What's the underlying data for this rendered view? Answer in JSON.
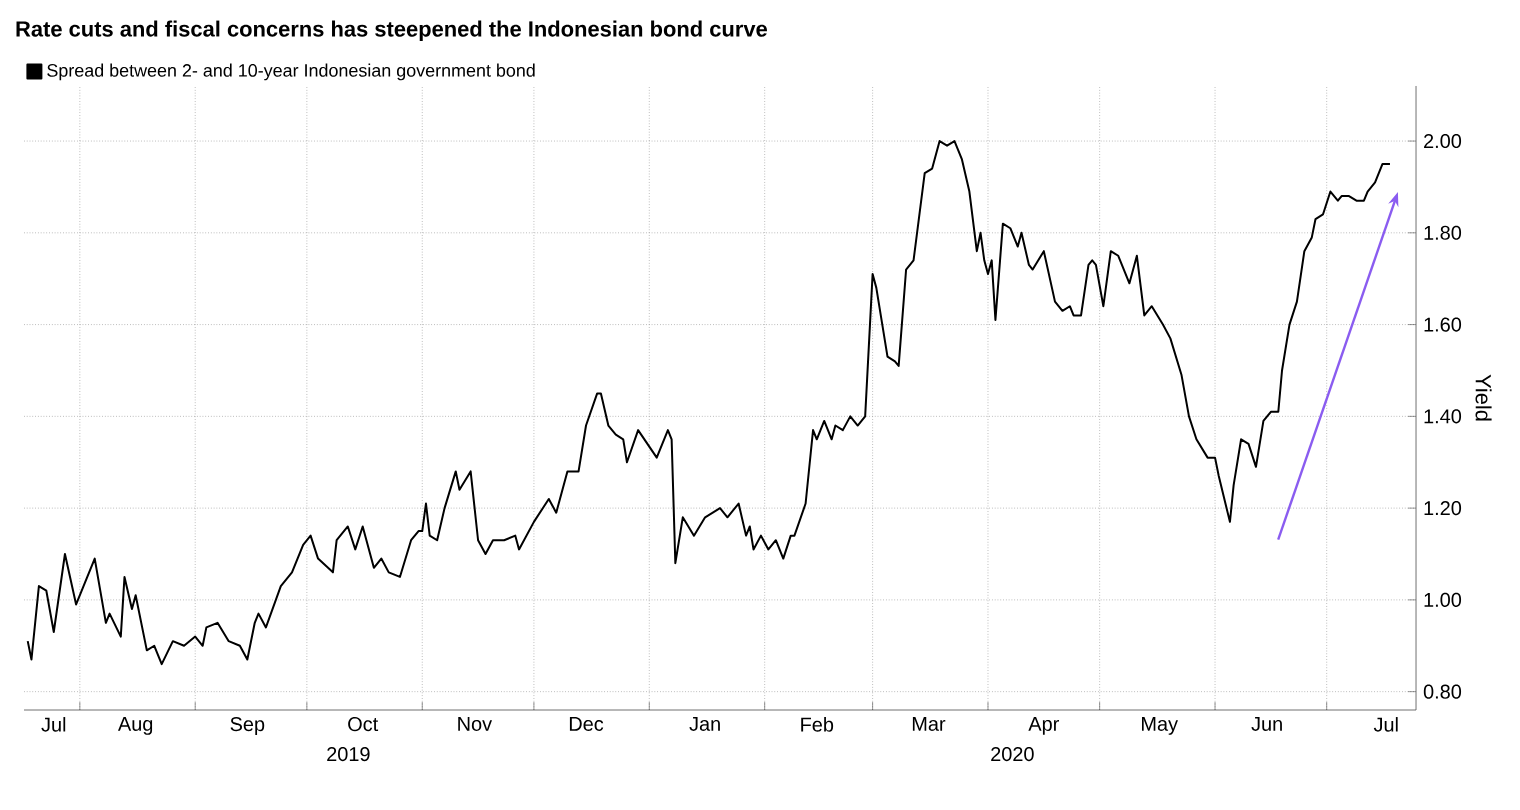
{
  "chart_data": {
    "type": "line",
    "title": "Rate cuts and fiscal concerns has steepened the Indonesian bond curve",
    "ylabel": "Yield",
    "legend": "top left",
    "grid": true,
    "annotations": [
      "2019",
      "2020"
    ],
    "xlim": [
      "2019-07-17",
      "2020-07-25"
    ],
    "xticks": [
      {
        "value": "2019-07-25",
        "label": "Jul"
      },
      {
        "value": "2019-08-01",
        "label": null
      },
      {
        "value": "2019-08-16",
        "label": "Aug"
      },
      {
        "value": "2019-09-01",
        "label": null
      },
      {
        "value": "2019-09-15",
        "label": "Sep"
      },
      {
        "value": "2019-10-01",
        "label": null
      },
      {
        "value": "2019-10-16",
        "label": "Oct"
      },
      {
        "value": "2019-11-01",
        "label": null
      },
      {
        "value": "2019-11-15",
        "label": "Nov"
      },
      {
        "value": "2019-12-01",
        "label": null
      },
      {
        "value": "2019-12-15",
        "label": "Dec"
      },
      {
        "value": "2020-01-01",
        "label": null
      },
      {
        "value": "2020-01-16",
        "label": "Jan"
      },
      {
        "value": "2020-02-01",
        "label": null
      },
      {
        "value": "2020-02-15",
        "label": "Feb"
      },
      {
        "value": "2020-03-01",
        "label": null
      },
      {
        "value": "2020-03-16",
        "label": "Mar"
      },
      {
        "value": "2020-04-01",
        "label": null
      },
      {
        "value": "2020-04-16",
        "label": "Apr"
      },
      {
        "value": "2020-05-01",
        "label": null
      },
      {
        "value": "2020-05-17",
        "label": "May"
      },
      {
        "value": "2020-06-01",
        "label": null
      },
      {
        "value": "2020-06-15",
        "label": "Jun"
      },
      {
        "value": "2020-07-01",
        "label": null
      },
      {
        "value": "2020-07-17",
        "label": "Jul"
      }
    ],
    "ylim": [
      0.76,
      2.12
    ],
    "yticks": [
      {
        "value": 0.8,
        "label": "0.80"
      },
      {
        "value": 1.0,
        "label": "1.00"
      },
      {
        "value": 1.2,
        "label": "1.20"
      },
      {
        "value": 1.4,
        "label": "1.40"
      },
      {
        "value": 1.6,
        "label": "1.60"
      },
      {
        "value": 1.8,
        "label": "1.80"
      },
      {
        "value": 2.0,
        "label": "2.00"
      }
    ],
    "series": [
      {
        "name": "Spread between 2- and 10-year Indonesian government bond",
        "color": "#000000",
        "x": [
          "2019-07-18",
          "2019-07-19",
          "2019-07-21",
          "2019-07-23",
          "2019-07-25",
          "2019-07-28",
          "2019-07-31",
          "2019-08-05",
          "2019-08-08",
          "2019-08-09",
          "2019-08-12",
          "2019-08-13",
          "2019-08-15",
          "2019-08-16",
          "2019-08-19",
          "2019-08-21",
          "2019-08-23",
          "2019-08-26",
          "2019-08-29",
          "2019-09-01",
          "2019-09-03",
          "2019-09-04",
          "2019-09-07",
          "2019-09-10",
          "2019-09-13",
          "2019-09-15",
          "2019-09-17",
          "2019-09-18",
          "2019-09-20",
          "2019-09-24",
          "2019-09-27",
          "2019-09-30",
          "2019-10-02",
          "2019-10-04",
          "2019-10-08",
          "2019-10-09",
          "2019-10-12",
          "2019-10-14",
          "2019-10-16",
          "2019-10-19",
          "2019-10-21",
          "2019-10-23",
          "2019-10-26",
          "2019-10-29",
          "2019-10-31",
          "2019-11-01",
          "2019-11-02",
          "2019-11-03",
          "2019-11-05",
          "2019-11-07",
          "2019-11-10",
          "2019-11-11",
          "2019-11-14",
          "2019-11-16",
          "2019-11-18",
          "2019-11-20",
          "2019-11-23",
          "2019-11-26",
          "2019-11-27",
          "2019-12-01",
          "2019-12-05",
          "2019-12-07",
          "2019-12-10",
          "2019-12-13",
          "2019-12-15",
          "2019-12-18",
          "2019-12-19",
          "2019-12-21",
          "2019-12-23",
          "2019-12-25",
          "2019-12-26",
          "2019-12-29",
          "2020-01-03",
          "2020-01-06",
          "2020-01-07",
          "2020-01-08",
          "2020-01-10",
          "2020-01-13",
          "2020-01-16",
          "2020-01-20",
          "2020-01-22",
          "2020-01-25",
          "2020-01-27",
          "2020-01-28",
          "2020-01-29",
          "2020-01-31",
          "2020-02-02",
          "2020-02-04",
          "2020-02-06",
          "2020-02-08",
          "2020-02-09",
          "2020-02-12",
          "2020-02-14",
          "2020-02-15",
          "2020-02-17",
          "2020-02-19",
          "2020-02-20",
          "2020-02-22",
          "2020-02-24",
          "2020-02-26",
          "2020-02-28",
          "2020-03-01",
          "2020-03-02",
          "2020-03-05",
          "2020-03-07",
          "2020-03-08",
          "2020-03-10",
          "2020-03-12",
          "2020-03-15",
          "2020-03-17",
          "2020-03-19",
          "2020-03-21",
          "2020-03-23",
          "2020-03-25",
          "2020-03-27",
          "2020-03-29",
          "2020-03-30",
          "2020-03-31",
          "2020-04-01",
          "2020-04-02",
          "2020-04-03",
          "2020-04-05",
          "2020-04-07",
          "2020-04-09",
          "2020-04-10",
          "2020-04-12",
          "2020-04-13",
          "2020-04-16",
          "2020-04-19",
          "2020-04-21",
          "2020-04-23",
          "2020-04-24",
          "2020-04-26",
          "2020-04-28",
          "2020-04-29",
          "2020-04-30",
          "2020-05-02",
          "2020-05-04",
          "2020-05-06",
          "2020-05-09",
          "2020-05-11",
          "2020-05-13",
          "2020-05-15",
          "2020-05-18",
          "2020-05-20",
          "2020-05-23",
          "2020-05-25",
          "2020-05-27",
          "2020-05-30",
          "2020-06-01",
          "2020-06-02",
          "2020-06-05",
          "2020-06-06",
          "2020-06-08",
          "2020-06-10",
          "2020-06-12",
          "2020-06-14",
          "2020-06-16",
          "2020-06-18",
          "2020-06-19",
          "2020-06-21",
          "2020-06-23",
          "2020-06-25",
          "2020-06-27",
          "2020-06-28",
          "2020-06-30",
          "2020-07-02",
          "2020-07-04",
          "2020-07-05",
          "2020-07-07",
          "2020-07-09",
          "2020-07-11",
          "2020-07-12",
          "2020-07-14",
          "2020-07-16",
          "2020-07-18"
        ],
        "values": [
          0.91,
          0.87,
          1.03,
          1.02,
          0.93,
          1.1,
          0.99,
          1.09,
          0.95,
          0.97,
          0.92,
          1.05,
          0.98,
          1.01,
          0.89,
          0.9,
          0.86,
          0.91,
          0.9,
          0.92,
          0.9,
          0.94,
          0.95,
          0.91,
          0.9,
          0.87,
          0.95,
          0.97,
          0.94,
          1.03,
          1.06,
          1.12,
          1.14,
          1.09,
          1.06,
          1.13,
          1.16,
          1.11,
          1.16,
          1.07,
          1.09,
          1.06,
          1.05,
          1.13,
          1.15,
          1.15,
          1.21,
          1.14,
          1.13,
          1.2,
          1.28,
          1.24,
          1.28,
          1.13,
          1.1,
          1.13,
          1.13,
          1.14,
          1.11,
          1.17,
          1.22,
          1.19,
          1.28,
          1.28,
          1.38,
          1.45,
          1.45,
          1.38,
          1.36,
          1.35,
          1.3,
          1.37,
          1.31,
          1.37,
          1.35,
          1.08,
          1.18,
          1.14,
          1.18,
          1.2,
          1.18,
          1.21,
          1.14,
          1.16,
          1.11,
          1.14,
          1.11,
          1.13,
          1.09,
          1.14,
          1.14,
          1.21,
          1.37,
          1.35,
          1.39,
          1.35,
          1.38,
          1.37,
          1.4,
          1.38,
          1.4,
          1.71,
          1.68,
          1.53,
          1.52,
          1.51,
          1.72,
          1.74,
          1.93,
          1.94,
          2.0,
          1.99,
          2.0,
          1.96,
          1.89,
          1.76,
          1.8,
          1.74,
          1.71,
          1.74,
          1.61,
          1.82,
          1.81,
          1.77,
          1.8,
          1.73,
          1.72,
          1.76,
          1.65,
          1.63,
          1.64,
          1.62,
          1.62,
          1.73,
          1.74,
          1.73,
          1.64,
          1.76,
          1.75,
          1.69,
          1.75,
          1.62,
          1.64,
          1.6,
          1.57,
          1.49,
          1.4,
          1.35,
          1.31,
          1.31,
          1.27,
          1.17,
          1.25,
          1.35,
          1.34,
          1.29,
          1.39,
          1.41,
          1.41,
          1.5,
          1.6,
          1.65,
          1.76,
          1.79,
          1.83,
          1.84,
          1.89,
          1.87,
          1.88,
          1.88,
          1.87,
          1.87,
          1.89,
          1.91,
          1.95,
          1.95
        ]
      }
    ]
  }
}
